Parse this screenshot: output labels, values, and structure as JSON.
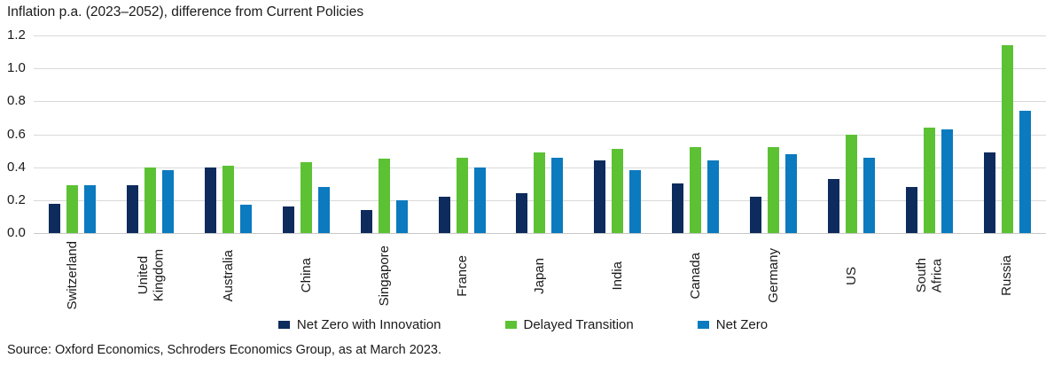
{
  "title": "Inflation p.a. (2023–2052), difference from Current Policies",
  "source": "Source: Oxford Economics, Schroders Economics Group, as at March 2023.",
  "colors": {
    "navy": "#0d2b5c",
    "green": "#5cc234",
    "blue": "#0b7abf",
    "gridline": "#d9d9d9",
    "text": "#1a1a1a"
  },
  "chart_data": {
    "type": "bar",
    "title": "Inflation p.a. (2023–2052), difference from Current Policies",
    "categories": [
      "Switzerland",
      "United\nKingdom",
      "Australia",
      "China",
      "Singapore",
      "France",
      "Japan",
      "India",
      "Canada",
      "Germany",
      "US",
      "South\nAfrica",
      "Russia"
    ],
    "series": [
      {
        "name": "Net Zero with Innovation",
        "color": "#0d2b5c",
        "values": [
          0.18,
          0.29,
          0.4,
          0.16,
          0.14,
          0.22,
          0.24,
          0.44,
          0.3,
          0.22,
          0.33,
          0.28,
          0.49
        ]
      },
      {
        "name": "Delayed Transition",
        "color": "#5cc234",
        "values": [
          0.29,
          0.4,
          0.41,
          0.43,
          0.45,
          0.46,
          0.49,
          0.51,
          0.52,
          0.52,
          0.6,
          0.64,
          1.14
        ]
      },
      {
        "name": "Net Zero",
        "color": "#0b7abf",
        "values": [
          0.29,
          0.38,
          0.17,
          0.28,
          0.2,
          0.4,
          0.46,
          0.38,
          0.44,
          0.48,
          0.46,
          0.63,
          0.74
        ]
      }
    ],
    "xlabel": "",
    "ylabel": "",
    "ylim": [
      0,
      1.2
    ],
    "yticks": [
      0.0,
      0.2,
      0.4,
      0.6,
      0.8,
      1.0,
      1.2
    ],
    "grid": true,
    "legend_position": "bottom"
  }
}
